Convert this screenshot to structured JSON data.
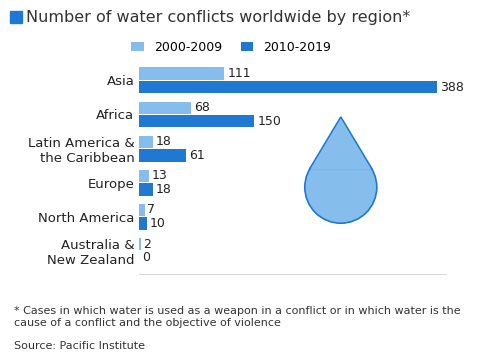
{
  "chart_data": {
    "type": "bar",
    "orientation": "horizontal",
    "title": "Number of water conflicts worldwide by region*",
    "categories": [
      "Asia",
      "Africa",
      "Latin America & the Caribbean",
      "Europe",
      "North America",
      "Australia & New Zealand"
    ],
    "series": [
      {
        "name": "2000-2009",
        "color": "#85bdec",
        "values": [
          111,
          68,
          18,
          13,
          7,
          2
        ]
      },
      {
        "name": "2010-2019",
        "color": "#1f78d1",
        "values": [
          388,
          150,
          61,
          18,
          10,
          0
        ]
      }
    ],
    "xlim": [
      0,
      400
    ],
    "data_labels": true,
    "tick_labels": "y",
    "legend": "upper center",
    "footnote": "* Cases in which water is used as a weapon in a conflict or in which water is the cause of a conflict and the objective of violence",
    "source": "Source: Pacific Institute"
  }
}
